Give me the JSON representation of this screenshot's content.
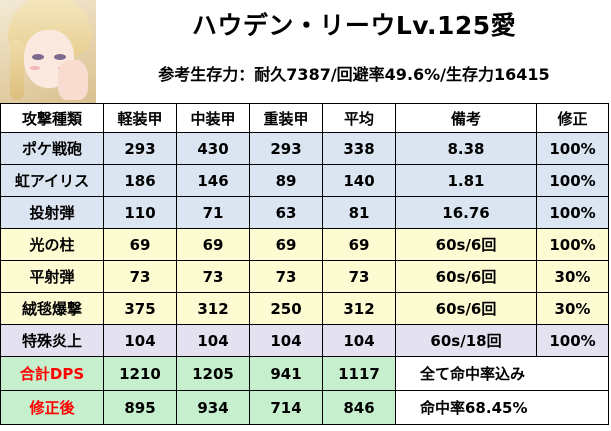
{
  "header": {
    "title": "ハウデン・リーウLv.125愛",
    "subtitle": "参考生存力：耐久7387/回避率49.6%/生存力16415"
  },
  "table": {
    "columns": [
      "攻撃種類",
      "軽装甲",
      "中装甲",
      "重装甲",
      "平均",
      "備考",
      "修正"
    ],
    "rows": [
      {
        "name": "ポケ戦砲",
        "light": "293",
        "medium": "430",
        "heavy": "293",
        "avg": "338",
        "note": "8.38",
        "mod": "100%"
      },
      {
        "name": "虹アイリス",
        "light": "186",
        "medium": "146",
        "heavy": "89",
        "avg": "140",
        "note": "1.81",
        "mod": "100%"
      },
      {
        "name": "投射弾",
        "light": "110",
        "medium": "71",
        "heavy": "63",
        "avg": "81",
        "note": "16.76",
        "mod": "100%"
      },
      {
        "name": "光の柱",
        "light": "69",
        "medium": "69",
        "heavy": "69",
        "avg": "69",
        "note": "60s/6回",
        "mod": "100%"
      },
      {
        "name": "平射弾",
        "light": "73",
        "medium": "73",
        "heavy": "73",
        "avg": "73",
        "note": "60s/6回",
        "mod": "30%"
      },
      {
        "name": "絨毯爆撃",
        "light": "375",
        "medium": "312",
        "heavy": "250",
        "avg": "312",
        "note": "60s/6回",
        "mod": "30%"
      },
      {
        "name": "特殊炎上",
        "light": "104",
        "medium": "104",
        "heavy": "104",
        "avg": "104",
        "note": "60s/18回",
        "mod": "100%"
      }
    ],
    "total": {
      "name": "合計DPS",
      "light": "1210",
      "medium": "1205",
      "heavy": "941",
      "avg": "1117",
      "note": "全て命中率込み"
    },
    "corrected": {
      "name": "修正後",
      "light": "895",
      "medium": "934",
      "heavy": "714",
      "avg": "846",
      "note": "命中率68.45%"
    }
  },
  "colors": {
    "blue_rows": "#dbe5f1",
    "yellow_rows": "#fdfbd2",
    "lavender_row": "#e4e1f0",
    "green_cells": "#c6efce",
    "red_text": "#ff0000"
  }
}
